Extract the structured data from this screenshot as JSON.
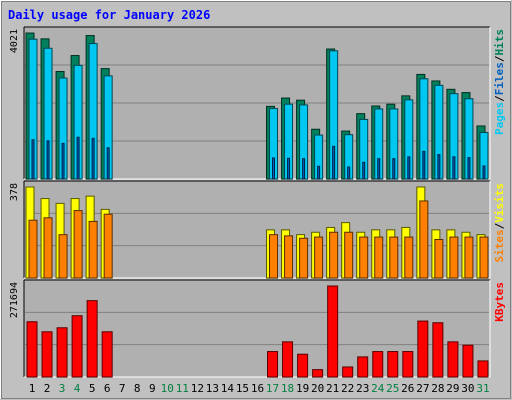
{
  "chart_data": {
    "type": "bar",
    "title": "Daily usage for January 2026",
    "categories": [
      "1",
      "2",
      "3",
      "4",
      "5",
      "6",
      "7",
      "8",
      "9",
      "10",
      "11",
      "12",
      "13",
      "14",
      "15",
      "16",
      "17",
      "18",
      "19",
      "20",
      "21",
      "22",
      "23",
      "24",
      "25",
      "26",
      "27",
      "28",
      "29",
      "30",
      "31"
    ],
    "weekend_days": [
      "3",
      "4",
      "10",
      "11",
      "17",
      "18",
      "24",
      "25",
      "31"
    ],
    "colors": {
      "background": "#c0c0c0",
      "plot_background": "#b0b0b0",
      "grid": "#808080",
      "title": "#0000ff",
      "axis_text": "#000000",
      "weekend_text": "#008040",
      "hits": "#00805c",
      "files": "#00c8f0",
      "pages": "#0060c0",
      "visits": "#ffff00",
      "sites": "#ff8000",
      "kbytes": "#ff0000"
    },
    "panels": [
      {
        "name": "hits-files-pages",
        "max_label": "4021",
        "ylim": [
          0,
          4021
        ],
        "legend": [
          {
            "label": "Pages",
            "color": "#00c8f0"
          },
          {
            "label": "Files",
            "color": "#0060c0"
          },
          {
            "label": "Hits",
            "color": "#00805c"
          }
        ],
        "series": [
          {
            "name": "Hits",
            "values": [
              4020,
              3860,
              2960,
              3400,
              3950,
              3040,
              null,
              null,
              null,
              null,
              null,
              null,
              null,
              null,
              null,
              null,
              2000,
              2230,
              2170,
              1370,
              3580,
              1320,
              1800,
              2010,
              2060,
              2290,
              2880,
              2700,
              2470,
              2380,
              1460
            ]
          },
          {
            "name": "Files",
            "values": [
              3850,
              3600,
              2780,
              3130,
              3730,
              2840,
              null,
              null,
              null,
              null,
              null,
              null,
              null,
              null,
              null,
              null,
              1940,
              2060,
              2040,
              1210,
              3530,
              1220,
              1640,
              1930,
              1930,
              2180,
              2760,
              2580,
              2350,
              2210,
              1280
            ]
          },
          {
            "name": "Pages",
            "values": [
              1080,
              1050,
              980,
              1150,
              1120,
              860,
              null,
              null,
              null,
              null,
              null,
              null,
              null,
              null,
              null,
              null,
              580,
              570,
              560,
              350,
              900,
              330,
              460,
              560,
              560,
              610,
              760,
              670,
              610,
              590,
              360
            ]
          }
        ]
      },
      {
        "name": "visits-sites",
        "max_label": "378",
        "ylim": [
          0,
          378
        ],
        "legend": [
          {
            "label": "Sites",
            "color": "#ff8000"
          },
          {
            "label": "Visits",
            "color": "#ffff00"
          }
        ],
        "series": [
          {
            "name": "Visits",
            "values": [
              378,
              330,
              310,
              330,
              340,
              285,
              null,
              null,
              null,
              null,
              null,
              null,
              null,
              null,
              null,
              null,
              200,
              200,
              180,
              190,
              210,
              230,
              190,
              200,
              200,
              210,
              378,
              200,
              200,
              190,
              180
            ]
          },
          {
            "name": "Sites",
            "values": [
              240,
              250,
              180,
              280,
              235,
              265,
              null,
              null,
              null,
              null,
              null,
              null,
              null,
              null,
              null,
              null,
              180,
              175,
              165,
              170,
              190,
              190,
              170,
              170,
              170,
              170,
              320,
              160,
              170,
              170,
              170
            ]
          }
        ]
      },
      {
        "name": "kbytes",
        "max_label": "271694",
        "ylim": [
          0,
          271694
        ],
        "legend": [
          {
            "label": "KBytes",
            "color": "#ff0000"
          }
        ],
        "series": [
          {
            "name": "KBytes",
            "values": [
              165000,
              135000,
              147000,
              183000,
              228000,
              135000,
              null,
              null,
              null,
              null,
              null,
              null,
              null,
              null,
              null,
              null,
              76000,
              105000,
              68000,
              22000,
              271694,
              30000,
              60000,
              76000,
              76000,
              76000,
              167000,
              162000,
              105000,
              95000,
              48000
            ]
          }
        ]
      }
    ]
  }
}
